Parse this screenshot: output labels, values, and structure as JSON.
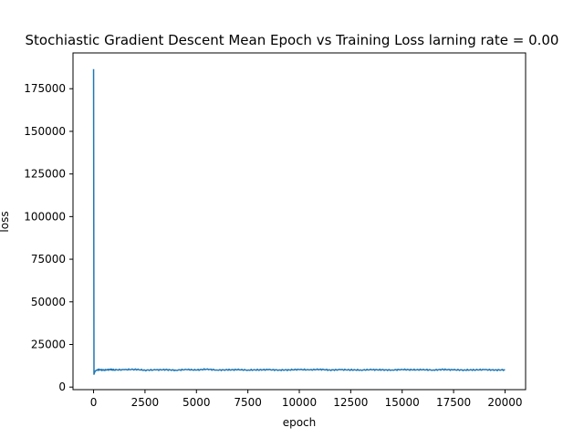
{
  "chart_data": {
    "type": "line",
    "title": "Stochiastic Gradient Descent Mean Epoch vs Training Loss larning rate = 0.00",
    "xlabel": "epoch",
    "ylabel": "loss",
    "xlim": [
      -1000,
      21000
    ],
    "ylim": [
      -1500,
      196000
    ],
    "xticks": [
      0,
      2500,
      5000,
      7500,
      10000,
      12500,
      15000,
      17500,
      20000
    ],
    "yticks": [
      0,
      25000,
      50000,
      75000,
      100000,
      125000,
      150000,
      175000
    ],
    "grid": false,
    "legend": "none",
    "series": [
      {
        "color": "#1f77b4",
        "x": [
          0,
          20,
          60,
          120,
          200,
          300,
          500,
          800,
          1000,
          1500,
          2000,
          2500,
          3000,
          3500,
          4000,
          4500,
          5000,
          5500,
          6000,
          6500,
          7000,
          7500,
          8000,
          8500,
          9000,
          9500,
          10000,
          10500,
          11000,
          11500,
          12000,
          12500,
          13000,
          13500,
          14000,
          14500,
          15000,
          15500,
          16000,
          16500,
          17000,
          17500,
          18000,
          18500,
          19000,
          19500,
          20000
        ],
        "y": [
          186500,
          7500,
          9000,
          9800,
          10100,
          10200,
          10000,
          10300,
          10100,
          10200,
          10400,
          9900,
          10100,
          10200,
          9900,
          10300,
          10000,
          10500,
          10000,
          10100,
          10200,
          10000,
          10100,
          10200,
          10000,
          10100,
          10300,
          10100,
          10400,
          10000,
          10200,
          10100,
          10000,
          10200,
          10100,
          10000,
          10300,
          10100,
          10200,
          10000,
          10300,
          10100,
          10000,
          10100,
          10200,
          10000,
          10100
        ]
      }
    ]
  }
}
